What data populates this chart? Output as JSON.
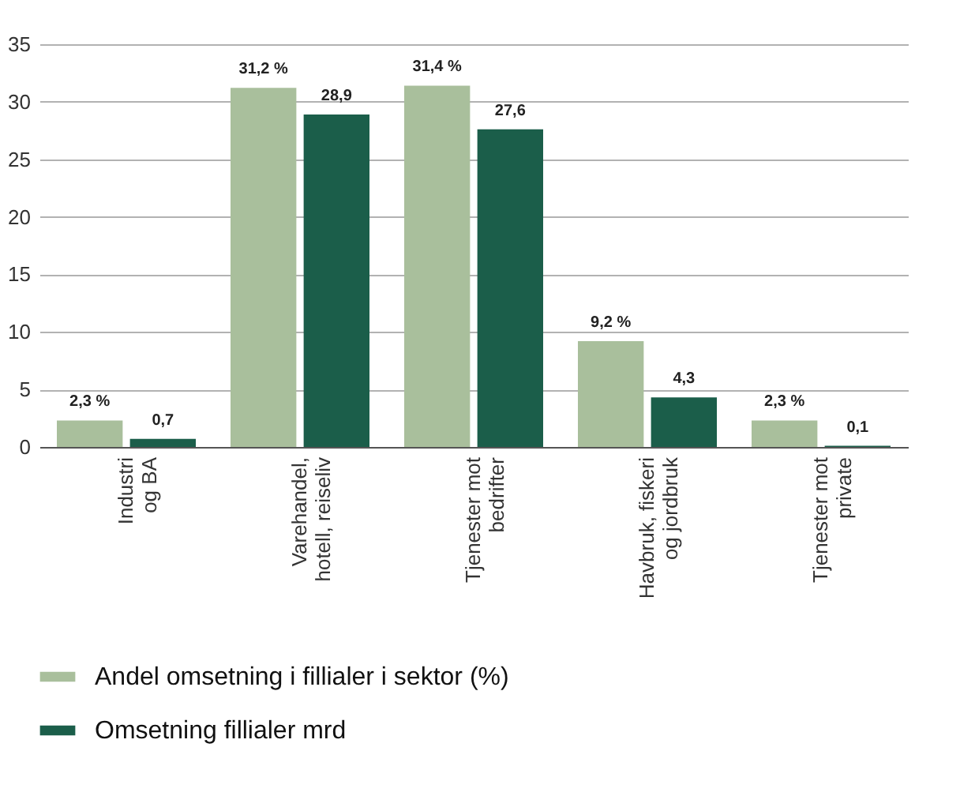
{
  "chart_data": {
    "type": "bar",
    "categories": [
      "Industri\nog BA",
      "Varehandel,\nhotell, reiseliv",
      "Tjenester mot\nbedrifter",
      "Havbruk, fiskeri\nog jordbruk",
      "Tjenester mot\nprivate"
    ],
    "series": [
      {
        "name": "Andel omsetning i fillialer i sektor (%)",
        "color": "#a9bf9c",
        "values": [
          2.3,
          31.2,
          31.4,
          9.2,
          2.3
        ],
        "value_labels": [
          "2,3 %",
          "31,2 %",
          "31,4 %",
          "9,2 %",
          "2,3 %"
        ]
      },
      {
        "name": "Omsetning fillialer mrd",
        "color": "#1b5e4a",
        "values": [
          0.7,
          28.9,
          27.6,
          4.3,
          0.1
        ],
        "value_labels": [
          "0,7",
          "28,9",
          "27,6",
          "4,3",
          "0,1"
        ]
      }
    ],
    "ylim": [
      0,
      35
    ],
    "yticks": [
      0,
      5,
      10,
      15,
      20,
      25,
      30,
      35
    ],
    "grid": "y",
    "legend": "bottom"
  }
}
